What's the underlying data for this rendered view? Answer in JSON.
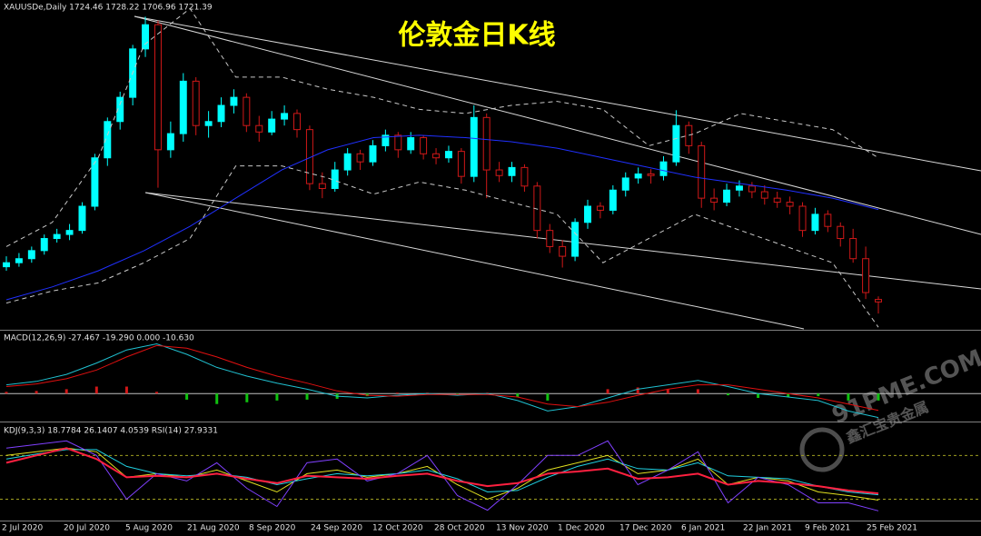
{
  "chart_data": [
    {
      "type": "candlestick",
      "title": "伦敦金日K线",
      "header": "XAUUSDe,Daily  1724.46 1728.22 1706.96 1721.39",
      "x_labels": [
        "2 Jul 2020",
        "20 Jul 2020",
        "5 Aug 2020",
        "21 Aug 2020",
        "8 Sep 2020",
        "24 Sep 2020",
        "12 Oct 2020",
        "28 Oct 2020",
        "13 Nov 2020",
        "1 Dec 2020",
        "17 Dec 2020",
        "6 Jan 2021",
        "22 Jan 2021",
        "9 Feb 2021",
        "25 Feb 2021"
      ],
      "ylim": [
        1688,
        2090
      ],
      "up_color": "#00ffff",
      "down_color": "#d01818",
      "candles": [
        [
          1765,
          1778,
          1760,
          1770
        ],
        [
          1770,
          1782,
          1765,
          1775
        ],
        [
          1775,
          1790,
          1770,
          1785
        ],
        [
          1785,
          1805,
          1780,
          1800
        ],
        [
          1800,
          1812,
          1795,
          1805
        ],
        [
          1805,
          1818,
          1798,
          1810
        ],
        [
          1810,
          1845,
          1806,
          1840
        ],
        [
          1840,
          1905,
          1835,
          1900
        ],
        [
          1900,
          1950,
          1890,
          1945
        ],
        [
          1945,
          1982,
          1935,
          1975
        ],
        [
          1975,
          2040,
          1965,
          2035
        ],
        [
          2035,
          2075,
          2025,
          2065
        ],
        [
          2065,
          2070,
          1863,
          1910
        ],
        [
          1910,
          1945,
          1900,
          1930
        ],
        [
          1930,
          2005,
          1920,
          1995
        ],
        [
          1995,
          2000,
          1928,
          1940
        ],
        [
          1940,
          1958,
          1925,
          1945
        ],
        [
          1945,
          1975,
          1938,
          1965
        ],
        [
          1965,
          1985,
          1955,
          1975
        ],
        [
          1975,
          1980,
          1932,
          1940
        ],
        [
          1940,
          1952,
          1920,
          1932
        ],
        [
          1932,
          1958,
          1928,
          1948
        ],
        [
          1948,
          1965,
          1940,
          1955
        ],
        [
          1955,
          1960,
          1925,
          1935
        ],
        [
          1935,
          1940,
          1860,
          1868
        ],
        [
          1868,
          1882,
          1850,
          1862
        ],
        [
          1862,
          1895,
          1858,
          1885
        ],
        [
          1885,
          1912,
          1878,
          1905
        ],
        [
          1905,
          1910,
          1885,
          1895
        ],
        [
          1895,
          1922,
          1890,
          1915
        ],
        [
          1915,
          1935,
          1908,
          1928
        ],
        [
          1928,
          1932,
          1900,
          1910
        ],
        [
          1910,
          1932,
          1905,
          1925
        ],
        [
          1925,
          1928,
          1898,
          1905
        ],
        [
          1905,
          1912,
          1892,
          1900
        ],
        [
          1900,
          1915,
          1894,
          1908
        ],
        [
          1908,
          1912,
          1868,
          1877
        ],
        [
          1877,
          1965,
          1870,
          1950
        ],
        [
          1950,
          1955,
          1850,
          1885
        ],
        [
          1885,
          1895,
          1870,
          1878
        ],
        [
          1878,
          1895,
          1870,
          1888
        ],
        [
          1888,
          1892,
          1858,
          1865
        ],
        [
          1865,
          1870,
          1800,
          1810
        ],
        [
          1810,
          1818,
          1782,
          1790
        ],
        [
          1790,
          1798,
          1764,
          1778
        ],
        [
          1778,
          1825,
          1772,
          1820
        ],
        [
          1820,
          1848,
          1812,
          1840
        ],
        [
          1840,
          1845,
          1825,
          1835
        ],
        [
          1835,
          1866,
          1830,
          1860
        ],
        [
          1860,
          1882,
          1852,
          1875
        ],
        [
          1875,
          1888,
          1868,
          1880
        ],
        [
          1880,
          1886,
          1868,
          1878
        ],
        [
          1878,
          1902,
          1872,
          1895
        ],
        [
          1895,
          1959,
          1890,
          1940
        ],
        [
          1940,
          1945,
          1905,
          1915
        ],
        [
          1915,
          1920,
          1838,
          1850
        ],
        [
          1850,
          1862,
          1835,
          1845
        ],
        [
          1845,
          1868,
          1840,
          1860
        ],
        [
          1860,
          1872,
          1852,
          1865
        ],
        [
          1865,
          1870,
          1850,
          1858
        ],
        [
          1858,
          1866,
          1842,
          1850
        ],
        [
          1850,
          1858,
          1838,
          1845
        ],
        [
          1845,
          1852,
          1830,
          1840
        ],
        [
          1840,
          1845,
          1802,
          1810
        ],
        [
          1810,
          1838,
          1805,
          1830
        ],
        [
          1830,
          1835,
          1808,
          1815
        ],
        [
          1815,
          1820,
          1790,
          1800
        ],
        [
          1800,
          1812,
          1770,
          1775
        ],
        [
          1775,
          1790,
          1725,
          1733
        ],
        [
          1724.46,
          1728.22,
          1706.96,
          1721.39
        ]
      ],
      "series": [
        {
          "color": "#2030ff",
          "values": [
            1724,
            1740,
            1760,
            1785,
            1815,
            1850,
            1885,
            1910,
            1925,
            1928,
            1925,
            1920,
            1912,
            1900,
            1888,
            1876,
            1868,
            1860,
            1850,
            1836
          ]
        },
        {
          "color": "#c8c8c8",
          "dashed": true,
          "values": [
            1790,
            1820,
            1900,
            2040,
            2085,
            2000,
            2000,
            1985,
            1975,
            1960,
            1955,
            1965,
            1970,
            1960,
            1915,
            1930,
            1955,
            1945,
            1935,
            1900
          ]
        },
        {
          "color": "#c8c8c8",
          "dashed": true,
          "values": [
            1720,
            1735,
            1745,
            1770,
            1800,
            1890,
            1890,
            1875,
            1855,
            1870,
            1860,
            1845,
            1830,
            1770,
            1800,
            1830,
            1810,
            1790,
            1770,
            1690
          ]
        }
      ]
    },
    {
      "type": "macd",
      "header": "MACD(12,26,9) -27.467 -19.290 0.000 -10.630",
      "ylim": [
        -30,
        70
      ],
      "yticks": [
        0
      ],
      "histogram": {
        "up_color": "#d01818",
        "down_color": "#10c010",
        "values": [
          2,
          3,
          5,
          8,
          8,
          2,
          -7,
          -12,
          -10,
          -8,
          -7,
          -6,
          -3,
          1,
          1,
          -1,
          1,
          -4,
          -8,
          0,
          5,
          7,
          5,
          5,
          -2,
          -5,
          -4,
          -3,
          -8,
          -8
        ]
      },
      "series": [
        {
          "color": "#20c0d0",
          "values": [
            10,
            14,
            22,
            35,
            50,
            57,
            45,
            30,
            20,
            12,
            5,
            -3,
            -5,
            -2,
            0,
            -2,
            0,
            -8,
            -20,
            -15,
            -5,
            5,
            10,
            15,
            8,
            0,
            -4,
            -8,
            -20,
            -27.467
          ]
        },
        {
          "color": "#e01010",
          "values": [
            8,
            11,
            17,
            27,
            42,
            55,
            52,
            42,
            30,
            20,
            12,
            3,
            -2,
            -3,
            -1,
            -1,
            -1,
            -4,
            -12,
            -15,
            -10,
            -2,
            5,
            10,
            10,
            5,
            0,
            -5,
            -12,
            -19.29
          ]
        }
      ]
    },
    {
      "type": "kdj",
      "header": "KDJ(9,3,3) 18.7784 26.1407 4.0539  RSI(14) 27.9331",
      "ylim": [
        -8,
        124
      ],
      "yticks": [
        20,
        80
      ],
      "level_color": "#a0a020",
      "series": [
        {
          "color": "#e0e020",
          "values": [
            80,
            85,
            90,
            85,
            50,
            55,
            50,
            60,
            45,
            30,
            55,
            60,
            50,
            55,
            65,
            40,
            20,
            35,
            60,
            70,
            80,
            55,
            60,
            75,
            40,
            50,
            45,
            30,
            25,
            18.7784
          ]
        },
        {
          "color": "#20d0e0",
          "values": [
            75,
            82,
            88,
            88,
            65,
            55,
            52,
            55,
            50,
            40,
            48,
            55,
            52,
            55,
            60,
            48,
            30,
            32,
            50,
            65,
            75,
            62,
            60,
            70,
            52,
            50,
            48,
            38,
            30,
            26.1407
          ]
        },
        {
          "color": "#8040ff",
          "values": [
            90,
            95,
            100,
            80,
            20,
            55,
            45,
            70,
            35,
            10,
            70,
            75,
            45,
            55,
            80,
            25,
            5,
            40,
            80,
            80,
            100,
            40,
            60,
            85,
            15,
            50,
            40,
            15,
            15,
            4.0539
          ]
        },
        {
          "color": "#ff2040",
          "width": 2,
          "values": [
            70,
            80,
            90,
            75,
            50,
            52,
            50,
            55,
            48,
            42,
            52,
            50,
            48,
            52,
            55,
            45,
            38,
            42,
            55,
            58,
            62,
            48,
            50,
            55,
            40,
            45,
            42,
            38,
            32,
            27.9331
          ]
        }
      ]
    }
  ],
  "watermark": {
    "site": "91PME.COM",
    "brand": "鑫汇宝贵金属"
  }
}
